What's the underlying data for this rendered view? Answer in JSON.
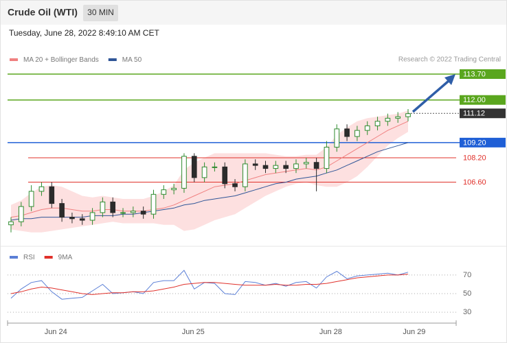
{
  "chart_data": {
    "type": "candlestick",
    "title": "Crude Oil (WTI)",
    "interval": "30 MIN",
    "subtitle": "Tuesday, June 28, 2022 8:49:10 AM CET",
    "credit": "Research © 2022 Trading Central",
    "up_color": "#2e8b2e",
    "down_color": "#2b2b2b",
    "xlim": [
      0,
      39
    ],
    "xticks": [
      {
        "value": 4.4,
        "label": "Jun 24"
      },
      {
        "value": 17.9,
        "label": "Jun 25"
      },
      {
        "value": 31.4,
        "label": "Jun 28"
      },
      {
        "value": 39.6,
        "label": "Jun 29"
      }
    ],
    "ylim": [
      102.75,
      114.24
    ],
    "open": [
      103.8,
      104.0,
      105.0,
      106.0,
      106.3,
      105.2,
      104.3,
      104.2,
      104.1,
      104.6,
      105.3,
      104.6,
      104.6,
      104.7,
      104.5,
      105.8,
      106.1,
      106.2,
      108.3,
      106.9,
      107.6,
      107.6,
      106.5,
      106.3,
      107.8,
      107.7,
      107.5,
      107.7,
      107.5,
      107.8,
      107.9,
      107.5,
      108.9,
      110.1,
      109.6,
      110.0,
      110.3,
      110.6,
      110.8,
      110.9
    ],
    "high": [
      104.3,
      105.3,
      106.4,
      106.6,
      106.6,
      105.5,
      104.6,
      104.5,
      104.9,
      105.6,
      105.6,
      104.9,
      105.0,
      105.0,
      106.1,
      106.4,
      106.5,
      108.5,
      108.5,
      107.9,
      107.9,
      107.9,
      106.8,
      108.1,
      108.1,
      108.0,
      108.0,
      108.0,
      108.1,
      108.2,
      108.2,
      109.3,
      110.4,
      110.4,
      110.3,
      110.6,
      110.9,
      111.1,
      111.2,
      111.4
    ],
    "low": [
      103.3,
      103.7,
      104.7,
      105.7,
      104.9,
      104.0,
      103.9,
      103.8,
      103.8,
      104.3,
      104.3,
      104.3,
      104.3,
      104.2,
      104.2,
      105.5,
      105.8,
      105.9,
      106.6,
      106.6,
      107.3,
      106.2,
      106.0,
      106.0,
      107.4,
      107.2,
      107.2,
      107.2,
      107.2,
      107.5,
      106.0,
      107.2,
      108.6,
      109.3,
      109.3,
      109.7,
      110.0,
      110.3,
      110.5,
      110.6
    ],
    "close": [
      104.0,
      105.0,
      106.0,
      106.3,
      105.2,
      104.3,
      104.2,
      104.1,
      104.6,
      105.3,
      104.6,
      104.6,
      104.7,
      104.5,
      105.8,
      106.1,
      106.2,
      108.3,
      106.9,
      107.6,
      107.6,
      106.5,
      106.3,
      107.8,
      107.7,
      107.5,
      107.7,
      107.5,
      107.8,
      107.9,
      107.5,
      108.9,
      110.1,
      109.6,
      110.0,
      110.3,
      110.6,
      110.8,
      110.9,
      111.1
    ],
    "series": [
      {
        "name": "MA 20 + Bollinger Bands",
        "color": "#f08080",
        "band_color": "#fde0e0",
        "values": [
          104.3,
          104.4,
          104.6,
          104.8,
          104.9,
          104.9,
          104.8,
          104.7,
          104.7,
          104.8,
          104.8,
          104.7,
          104.7,
          104.7,
          104.8,
          104.9,
          105.1,
          105.4,
          105.7,
          106.0,
          106.3,
          106.4,
          106.5,
          106.7,
          106.9,
          107.1,
          107.2,
          107.3,
          107.4,
          107.5,
          107.4,
          107.6,
          108.0,
          108.4,
          108.8,
          109.2,
          109.6,
          110.0,
          110.3,
          110.6
        ],
        "upper": [
          105.1,
          105.4,
          105.9,
          106.3,
          106.4,
          106.3,
          106.0,
          105.7,
          105.6,
          105.7,
          105.6,
          105.5,
          105.5,
          105.5,
          105.7,
          106.0,
          106.4,
          107.4,
          107.9,
          108.2,
          108.5,
          108.5,
          108.5,
          108.5,
          108.5,
          108.5,
          108.4,
          108.3,
          108.3,
          108.4,
          108.4,
          108.9,
          109.7,
          110.2,
          110.6,
          110.8,
          110.9,
          111.0,
          111.1,
          111.3
        ],
        "lower": [
          103.5,
          103.4,
          103.3,
          103.3,
          103.4,
          103.5,
          103.6,
          103.7,
          103.8,
          103.9,
          104.0,
          103.9,
          103.9,
          103.9,
          103.9,
          103.8,
          103.8,
          103.4,
          103.5,
          103.8,
          104.1,
          104.3,
          104.5,
          104.9,
          105.3,
          105.7,
          106.0,
          106.3,
          106.5,
          106.6,
          106.4,
          106.3,
          106.3,
          106.6,
          107.0,
          107.6,
          108.3,
          109.0,
          109.5,
          109.9
        ]
      },
      {
        "name": "MA 50",
        "color": "#2f5597",
        "values": [
          104.1,
          104.2,
          104.2,
          104.3,
          104.3,
          104.3,
          104.3,
          104.3,
          104.4,
          104.4,
          104.4,
          104.5,
          104.5,
          104.6,
          104.7,
          104.8,
          104.9,
          105.1,
          105.2,
          105.4,
          105.5,
          105.6,
          105.7,
          105.9,
          106.1,
          106.3,
          106.5,
          106.6,
          106.8,
          106.9,
          107.0,
          107.2,
          107.4,
          107.7,
          108.0,
          108.3,
          108.6,
          108.8,
          109.0,
          109.2
        ]
      }
    ],
    "levels": [
      {
        "value": 113.7,
        "label": "113.70",
        "color": "#5aa61e",
        "filled": true,
        "dashed": false
      },
      {
        "value": 112.0,
        "label": "112.00",
        "color": "#5aa61e",
        "filled": true,
        "dashed": false
      },
      {
        "value": 111.12,
        "label": "111.12",
        "color": "#333333",
        "filled": true,
        "dashed": true
      },
      {
        "value": 109.2,
        "label": "109.20",
        "color": "#1f5fd6",
        "filled": true,
        "dashed": false
      },
      {
        "value": 108.2,
        "label": "108.20",
        "color": "#e0302a",
        "filled": false,
        "dashed": false
      },
      {
        "value": 106.6,
        "label": "106.60",
        "color": "#e0302a",
        "filled": false,
        "dashed": false
      }
    ],
    "indicator": {
      "ylim": [
        22,
        81
      ],
      "yticks": [
        30,
        50,
        70
      ],
      "series": [
        {
          "name": "RSI",
          "color": "#5b7fd6",
          "values": [
            45,
            55,
            62,
            64,
            52,
            44,
            45,
            46,
            53,
            60,
            50,
            51,
            52,
            50,
            62,
            64,
            64,
            75,
            55,
            62,
            61,
            50,
            49,
            63,
            62,
            59,
            61,
            58,
            62,
            63,
            56,
            68,
            74,
            66,
            69,
            70,
            71,
            72,
            70,
            73
          ]
        },
        {
          "name": "9MA",
          "color": "#e0302a",
          "values": [
            50,
            52,
            55,
            57,
            56,
            54,
            52,
            50,
            49,
            50,
            51,
            51,
            52,
            52,
            53,
            55,
            57,
            60,
            61,
            62,
            62,
            61,
            60,
            59,
            59,
            59,
            60,
            59,
            59,
            60,
            60,
            61,
            63,
            65,
            67,
            68,
            69,
            70,
            70,
            71
          ]
        }
      ]
    }
  }
}
